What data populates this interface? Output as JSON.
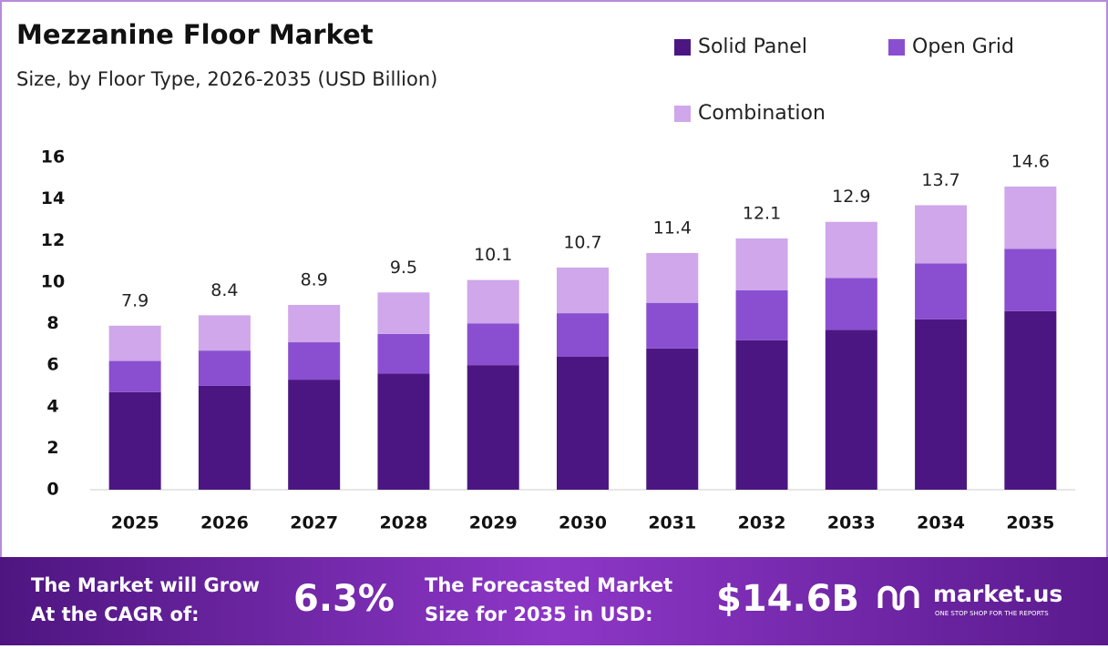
{
  "chart_data": {
    "type": "stacked_bar",
    "title": "Mezzanine Floor Market",
    "subtitle": "Size, by Floor Type, 2026-2035 (USD Billion)",
    "categories": [
      "2025",
      "2026",
      "2027",
      "2028",
      "2029",
      "2030",
      "2031",
      "2032",
      "2033",
      "2034",
      "2035"
    ],
    "series": [
      {
        "name": "Solid Panel",
        "color": "#4c1682",
        "values": [
          4.7,
          5.0,
          5.3,
          5.6,
          6.0,
          6.4,
          6.8,
          7.2,
          7.7,
          8.2,
          8.6
        ]
      },
      {
        "name": "Open Grid",
        "color": "#8a4fd0",
        "values": [
          1.5,
          1.7,
          1.8,
          1.9,
          2.0,
          2.1,
          2.2,
          2.4,
          2.5,
          2.7,
          3.0
        ]
      },
      {
        "name": "Combination",
        "color": "#cfa7ea",
        "values": [
          1.7,
          1.7,
          1.8,
          2.0,
          2.1,
          2.2,
          2.4,
          2.5,
          2.7,
          2.8,
          3.0
        ]
      }
    ],
    "totals": [
      7.9,
      8.4,
      8.9,
      9.5,
      10.1,
      10.7,
      11.4,
      12.1,
      12.9,
      13.7,
      14.6
    ],
    "ylim": [
      0,
      16
    ],
    "yticks": [
      0,
      2,
      4,
      6,
      8,
      10,
      12,
      14,
      16
    ],
    "grid": false
  },
  "footer": {
    "cagr_text": [
      "The Market will Grow",
      "At the CAGR of:"
    ],
    "cagr_value": "6.3%",
    "forecast_text": [
      "The Forecasted Market",
      "Size for 2035 in USD:"
    ],
    "forecast_value": "$14.6B",
    "brand": "market.us",
    "tagline": "ONE STOP SHOP FOR THE REPORTS"
  }
}
